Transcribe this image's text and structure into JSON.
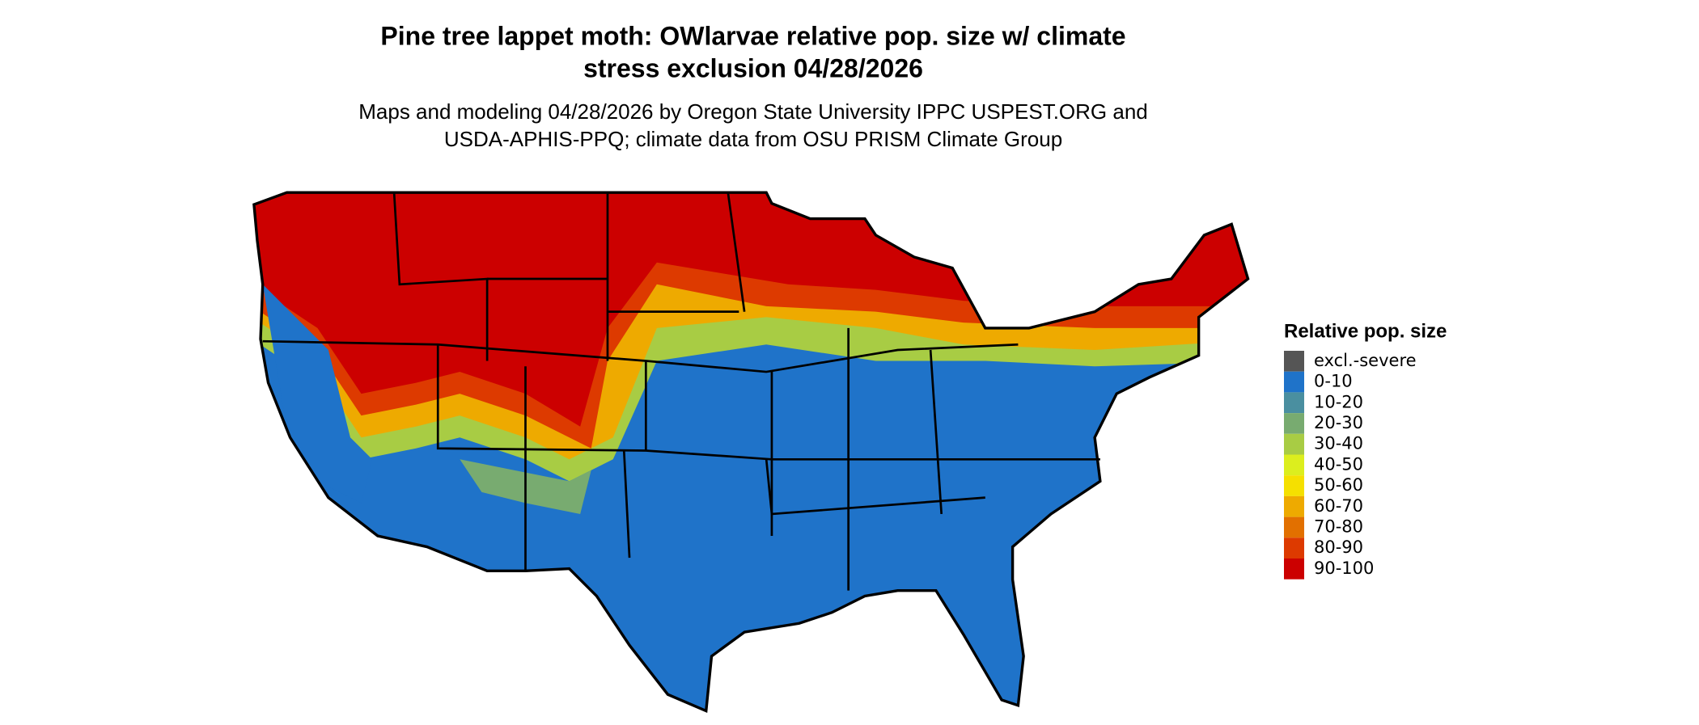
{
  "title": [
    "Pine tree lappet moth: OWlarvae relative pop. size w/ climate",
    "stress exclusion 04/28/2026"
  ],
  "subtitle": [
    "Maps and modeling 04/28/2026 by Oregon State University IPPC USPEST.ORG and",
    "USDA-APHIS-PPQ; climate data from OSU PRISM Climate Group"
  ],
  "legend": {
    "title": "Relative pop. size",
    "items": [
      {
        "label": "excl.-severe",
        "color": "#555555"
      },
      {
        "label": "0-10",
        "color": "#1f73c9"
      },
      {
        "label": "10-20",
        "color": "#4a8fa0"
      },
      {
        "label": "20-30",
        "color": "#78ab70"
      },
      {
        "label": "30-40",
        "color": "#a8cc44"
      },
      {
        "label": "40-50",
        "color": "#dcee1e"
      },
      {
        "label": "50-60",
        "color": "#f5e000"
      },
      {
        "label": "60-70",
        "color": "#eeaa00"
      },
      {
        "label": "70-80",
        "color": "#e27000"
      },
      {
        "label": "80-90",
        "color": "#dd3a00"
      },
      {
        "label": "90-100",
        "color": "#cc0000"
      }
    ]
  }
}
